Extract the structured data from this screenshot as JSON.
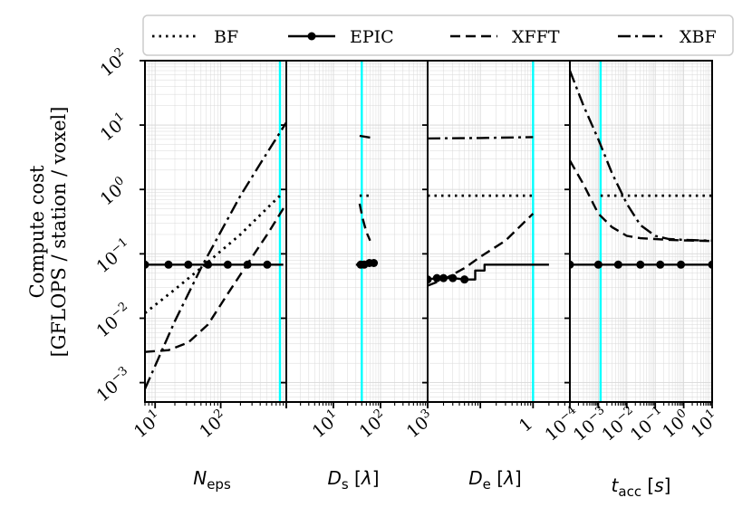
{
  "chart_data": {
    "type": "line",
    "ylabel_line1": "Compute cost",
    "ylabel_line2": "[GFLOPS / station / voxel]",
    "ylim": [
      0.0005,
      100
    ],
    "y_scale": "log",
    "y_ticks": [
      {
        "base": "10",
        "exp": "−3",
        "value": 0.001
      },
      {
        "base": "10",
        "exp": "−2",
        "value": 0.01
      },
      {
        "base": "10",
        "exp": "−1",
        "value": 0.1
      },
      {
        "base": "10",
        "exp": "0",
        "value": 1
      },
      {
        "base": "10",
        "exp": "1",
        "value": 10
      },
      {
        "base": "10",
        "exp": "2",
        "value": 100
      }
    ],
    "legend": {
      "placement": "top",
      "entries": [
        {
          "label": "BF",
          "style": "dotted"
        },
        {
          "label": "EPIC",
          "style": "solid-marker"
        },
        {
          "label": "XFFT",
          "style": "dashed"
        },
        {
          "label": "XBF",
          "style": "dashdot"
        }
      ]
    },
    "colors": {
      "series": "#000000",
      "marker_line": "#00ffff",
      "grid": "#d9d9d9"
    },
    "panels": [
      {
        "xlabel_main": "N",
        "xlabel_sub": "eps",
        "xlabel_rest": "",
        "xlim": [
          7,
          1000
        ],
        "x_ticks": [
          {
            "base": "10",
            "exp": "1",
            "value": 10
          },
          {
            "base": "10",
            "exp": "2",
            "value": 100
          }
        ],
        "vline": 800,
        "series": {
          "BF": {
            "x": [
              7,
              20,
              50,
              100,
              200,
              400,
              800
            ],
            "y": [
              0.012,
              0.028,
              0.06,
              0.11,
              0.2,
              0.4,
              0.8
            ]
          },
          "EPIC": {
            "x": [
              7,
              16,
              32,
              64,
              128,
              256,
              512,
              900
            ],
            "y": [
              0.068,
              0.068,
              0.068,
              0.068,
              0.068,
              0.068,
              0.068,
              0.068
            ]
          },
          "XFFT": {
            "x": [
              7,
              16,
              32,
              64,
              128,
              256,
              512,
              1000
            ],
            "y": [
              0.003,
              0.0032,
              0.0042,
              0.008,
              0.024,
              0.07,
              0.2,
              0.6
            ]
          },
          "XBF": {
            "x": [
              7,
              20,
              50,
              100,
              200,
              400,
              1000
            ],
            "y": [
              0.0008,
              0.009,
              0.06,
              0.22,
              0.8,
              2.5,
              11
            ]
          }
        }
      },
      {
        "xlabel_main": "D",
        "xlabel_sub": "s",
        "xlabel_rest": " [λ]",
        "xlim": [
          1,
          1000
        ],
        "x_ticks": [
          {
            "base": "10",
            "exp": "1",
            "value": 10
          },
          {
            "base": "10",
            "exp": "2",
            "value": 100
          },
          {
            "base": "10",
            "exp": "3",
            "value": 1000
          }
        ],
        "vline": 40,
        "series": {
          "BF": {
            "x": [
              36,
              60
            ],
            "y": [
              0.8,
              0.8
            ]
          },
          "EPIC": {
            "x": [
              30,
              38,
              45,
              58,
              72
            ],
            "y": [
              0.068,
              0.068,
              0.068,
              0.072,
              0.072
            ]
          },
          "XFFT": {
            "x": [
              36,
              42,
              50,
              60
            ],
            "y": [
              0.6,
              0.35,
              0.22,
              0.16
            ]
          },
          "XBF": {
            "x": [
              36,
              60
            ],
            "y": [
              6.8,
              6.4
            ]
          }
        }
      },
      {
        "xlabel_main": "D",
        "xlabel_sub": "e",
        "xlabel_rest": " [λ]",
        "xlim": [
          0.01,
          5
        ],
        "x_ticks": [
          {
            "base": "",
            "exp": "",
            "text": "1",
            "value": 1
          }
        ],
        "vline": 1,
        "series": {
          "BF": {
            "x": [
              0.01,
              1
            ],
            "y": [
              0.8,
              0.8
            ]
          },
          "EPIC": {
            "x": [
              0.01,
              0.015,
              0.02,
              0.03,
              0.05,
              0.08,
              0.08,
              0.12,
              0.12,
              2
            ],
            "y": [
              0.04,
              0.042,
              0.042,
              0.042,
              0.04,
              0.04,
              0.055,
              0.055,
              0.068,
              0.068
            ]
          },
          "XFFT": {
            "x": [
              0.01,
              0.02,
              0.05,
              0.1,
              0.3,
              0.6,
              1
            ],
            "y": [
              0.032,
              0.04,
              0.06,
              0.09,
              0.16,
              0.28,
              0.42
            ]
          },
          "XBF": {
            "x": [
              0.01,
              0.1,
              1
            ],
            "y": [
              6.2,
              6.3,
              6.5
            ]
          }
        }
      },
      {
        "xlabel_main": "t",
        "xlabel_sub": "acc",
        "xlabel_rest": " [s]",
        "xlim": [
          0.0001,
          10
        ],
        "x_ticks": [
          {
            "base": "10",
            "exp": "−4",
            "value": 0.0001
          },
          {
            "base": "10",
            "exp": "−3",
            "value": 0.001
          },
          {
            "base": "10",
            "exp": "−2",
            "value": 0.01
          },
          {
            "base": "10",
            "exp": "−1",
            "value": 0.1
          },
          {
            "base": "10",
            "exp": "0",
            "value": 1
          },
          {
            "base": "10",
            "exp": "1",
            "value": 10
          }
        ],
        "vline": 0.0012,
        "series": {
          "BF": {
            "x": [
              0.0012,
              10
            ],
            "y": [
              0.8,
              0.8
            ]
          },
          "EPIC": {
            "x": [
              0.0001,
              0.001,
              0.005,
              0.03,
              0.15,
              0.8,
              10
            ],
            "y": [
              0.068,
              0.068,
              0.068,
              0.068,
              0.068,
              0.068,
              0.068
            ]
          },
          "XFFT": {
            "x": [
              0.0001,
              0.0003,
              0.001,
              0.003,
              0.01,
              0.03,
              0.1,
              0.3,
              1,
              10
            ],
            "y": [
              2.8,
              1.2,
              0.42,
              0.26,
              0.19,
              0.175,
              0.17,
              0.165,
              0.162,
              0.158
            ]
          },
          "XBF": {
            "x": [
              0.0001,
              0.0003,
              0.001,
              0.003,
              0.01,
              0.03,
              0.1,
              0.3,
              1,
              10
            ],
            "y": [
              70,
              20,
              6,
              1.8,
              0.6,
              0.28,
              0.19,
              0.17,
              0.165,
              0.16
            ]
          }
        }
      }
    ]
  }
}
